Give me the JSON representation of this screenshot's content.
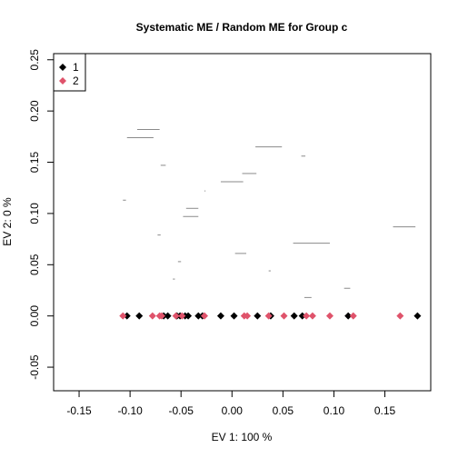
{
  "chart_data": {
    "type": "scatter",
    "title": "Systematic ME / Random ME for Group c",
    "xlabel": "EV 1: 100 %",
    "ylabel": "EV 2: 0 %",
    "xlim": [
      -0.175,
      0.195
    ],
    "ylim": [
      -0.073,
      0.256
    ],
    "x_ticks": [
      -0.15,
      -0.1,
      -0.05,
      0.0,
      0.05,
      0.1,
      0.15
    ],
    "x_tick_labels": [
      "-0.15",
      "-0.10",
      "-0.05",
      "0.00",
      "0.05",
      "0.10",
      "0.15"
    ],
    "y_ticks": [
      -0.05,
      0.0,
      0.05,
      0.1,
      0.15,
      0.2,
      0.25
    ],
    "y_tick_labels": [
      "-0.05",
      "0.00",
      "0.05",
      "0.10",
      "0.15",
      "0.20",
      "0.25"
    ],
    "legend": {
      "placement": "top-left",
      "entries": [
        "1",
        "2"
      ]
    },
    "series": [
      {
        "name": "1",
        "color": "#000000",
        "marker": "diamond",
        "points": [
          [
            -0.103,
            0
          ],
          [
            -0.091,
            0
          ],
          [
            -0.067,
            0
          ],
          [
            -0.063,
            0
          ],
          [
            -0.054,
            0
          ],
          [
            -0.051,
            0
          ],
          [
            -0.046,
            0
          ],
          [
            -0.043,
            0
          ],
          [
            -0.033,
            0
          ],
          [
            -0.029,
            0
          ],
          [
            -0.011,
            0
          ],
          [
            0.002,
            0
          ],
          [
            0.025,
            0
          ],
          [
            0.038,
            0
          ],
          [
            0.061,
            0
          ],
          [
            0.069,
            0
          ],
          [
            0.114,
            0
          ],
          [
            0.182,
            0
          ]
        ]
      },
      {
        "name": "2",
        "color": "#DF536B",
        "marker": "diamond",
        "points": [
          [
            -0.107,
            0
          ],
          [
            -0.078,
            0
          ],
          [
            -0.071,
            0
          ],
          [
            -0.069,
            0
          ],
          [
            -0.055,
            0
          ],
          [
            -0.049,
            0
          ],
          [
            -0.027,
            0
          ],
          [
            0.012,
            0
          ],
          [
            0.015,
            0
          ],
          [
            0.036,
            0
          ],
          [
            0.051,
            0
          ],
          [
            0.073,
            0
          ],
          [
            0.079,
            0
          ],
          [
            0.096,
            0
          ],
          [
            0.119,
            0
          ],
          [
            0.165,
            0
          ]
        ]
      }
    ],
    "segments": [
      {
        "x1": -0.093,
        "x2": -0.071,
        "y": 0.182
      },
      {
        "x1": -0.103,
        "x2": -0.077,
        "y": 0.174
      },
      {
        "x1": -0.07,
        "x2": -0.065,
        "y": 0.147
      },
      {
        "x1": 0.023,
        "x2": 0.049,
        "y": 0.165
      },
      {
        "x1": 0.01,
        "x2": 0.024,
        "y": 0.139
      },
      {
        "x1": -0.011,
        "x2": 0.011,
        "y": 0.131
      },
      {
        "x1": 0.068,
        "x2": 0.072,
        "y": 0.156
      },
      {
        "x1": -0.027,
        "x2": -0.026,
        "y": 0.122
      },
      {
        "x1": -0.107,
        "x2": -0.104,
        "y": 0.113
      },
      {
        "x1": -0.045,
        "x2": -0.033,
        "y": 0.105
      },
      {
        "x1": -0.048,
        "x2": -0.033,
        "y": 0.097
      },
      {
        "x1": 0.158,
        "x2": 0.18,
        "y": 0.087
      },
      {
        "x1": -0.073,
        "x2": -0.07,
        "y": 0.079
      },
      {
        "x1": 0.06,
        "x2": 0.096,
        "y": 0.071
      },
      {
        "x1": 0.003,
        "x2": 0.014,
        "y": 0.061
      },
      {
        "x1": -0.053,
        "x2": -0.05,
        "y": 0.053
      },
      {
        "x1": 0.036,
        "x2": 0.038,
        "y": 0.044
      },
      {
        "x1": -0.058,
        "x2": -0.056,
        "y": 0.036
      },
      {
        "x1": 0.11,
        "x2": 0.116,
        "y": 0.027
      },
      {
        "x1": 0.071,
        "x2": 0.078,
        "y": 0.018
      }
    ]
  }
}
